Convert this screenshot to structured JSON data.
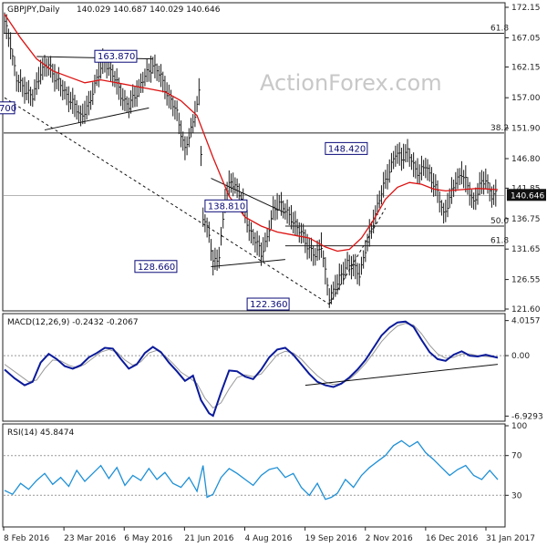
{
  "chart_data": [
    {
      "type": "candlestick",
      "title": "GBPJPY,Daily",
      "ohlc_header": "140.029 140.687 140.029 140.646",
      "watermark": "ActionForex.com",
      "last_price": "140.646",
      "ylim": [
        121.6,
        172.15
      ],
      "y_ticks": [
        "172.15",
        "167.05",
        "162.15",
        "157.00",
        "151.90",
        "146.80",
        "141.85",
        "136.75",
        "131.65",
        "126.55",
        "121.60"
      ],
      "x_dates": [
        "8 Feb 2016",
        "23 Mar 2016",
        "6 May 2016",
        "21 Jun 2016",
        "4 Aug 2016",
        "19 Sep 2016",
        "2 Nov 2016",
        "16 Dec 2016",
        "31 Jan 2017"
      ],
      "annotations": [
        {
          "text": "163.870",
          "value": 163.87
        },
        {
          "text": "148.420",
          "value": 148.42
        },
        {
          "text": "138.810",
          "value": 138.81
        },
        {
          "text": "128.660",
          "value": 128.66
        },
        {
          "text": "122.360",
          "value": 122.36
        },
        {
          "text": "700"
        }
      ],
      "fib_levels": [
        {
          "label": "61.8",
          "value": 167.8
        },
        {
          "label": "38.2",
          "value": 151.1
        },
        {
          "label": "50.0",
          "value": 135.5
        },
        {
          "label": "61.8",
          "value": 132.2
        }
      ],
      "close_series": [
        [
          0,
          169.5
        ],
        [
          3,
          166
        ],
        [
          6,
          160
        ],
        [
          10,
          158.5
        ],
        [
          14,
          157
        ],
        [
          18,
          161.5
        ],
        [
          22,
          162.5
        ],
        [
          26,
          160
        ],
        [
          30,
          158
        ],
        [
          34,
          156
        ],
        [
          38,
          154
        ],
        [
          42,
          155.5
        ],
        [
          46,
          160.5
        ],
        [
          50,
          163
        ],
        [
          54,
          161
        ],
        [
          58,
          157.5
        ],
        [
          62,
          155.5
        ],
        [
          66,
          158
        ],
        [
          70,
          160.5
        ],
        [
          74,
          162.5
        ],
        [
          78,
          160.5
        ],
        [
          82,
          157
        ],
        [
          86,
          154.5
        ],
        [
          90,
          148
        ],
        [
          94,
          153
        ],
        [
          97,
          157.5
        ],
        [
          99,
          137
        ],
        [
          102,
          134.5
        ],
        [
          104,
          129
        ],
        [
          107,
          130.5
        ],
        [
          110,
          140
        ],
        [
          113,
          143
        ],
        [
          116,
          142
        ],
        [
          119,
          139
        ],
        [
          122,
          135
        ],
        [
          125,
          133
        ],
        [
          128,
          131
        ],
        [
          131,
          133.5
        ],
        [
          134,
          138
        ],
        [
          137,
          139.5
        ],
        [
          140,
          138
        ],
        [
          143,
          137
        ],
        [
          146,
          135
        ],
        [
          149,
          134
        ],
        [
          152,
          131.5
        ],
        [
          155,
          130.5
        ],
        [
          158,
          132.5
        ],
        [
          160,
          127.5
        ],
        [
          162,
          123.5
        ],
        [
          165,
          125.5
        ],
        [
          168,
          127
        ],
        [
          171,
          129.5
        ],
        [
          174,
          128.5
        ],
        [
          177,
          127.5
        ],
        [
          180,
          131.5
        ],
        [
          183,
          135
        ],
        [
          186,
          139
        ],
        [
          189,
          142
        ],
        [
          192,
          145
        ],
        [
          195,
          147.5
        ],
        [
          198,
          147
        ],
        [
          201,
          148
        ],
        [
          204,
          145.5
        ],
        [
          207,
          144.5
        ],
        [
          210,
          145.5
        ],
        [
          213,
          143.5
        ],
        [
          216,
          141
        ],
        [
          219,
          137.5
        ],
        [
          222,
          140
        ],
        [
          225,
          143
        ],
        [
          228,
          144.5
        ],
        [
          231,
          142
        ],
        [
          234,
          139.5
        ],
        [
          237,
          142
        ],
        [
          240,
          143.5
        ],
        [
          243,
          140.5
        ],
        [
          246,
          140.6
        ]
      ],
      "ma_series": [
        [
          0,
          171
        ],
        [
          8,
          167
        ],
        [
          16,
          163.5
        ],
        [
          24,
          161.5
        ],
        [
          32,
          160.5
        ],
        [
          40,
          159.5
        ],
        [
          48,
          160
        ],
        [
          56,
          159.5
        ],
        [
          64,
          159
        ],
        [
          72,
          158.5
        ],
        [
          80,
          158
        ],
        [
          88,
          156.5
        ],
        [
          96,
          154
        ],
        [
          104,
          147
        ],
        [
          112,
          140.5
        ],
        [
          120,
          137
        ],
        [
          128,
          135.5
        ],
        [
          136,
          134.5
        ],
        [
          144,
          134
        ],
        [
          152,
          133.5
        ],
        [
          160,
          132
        ],
        [
          166,
          131.3
        ],
        [
          172,
          131.6
        ],
        [
          178,
          133.5
        ],
        [
          184,
          136.5
        ],
        [
          190,
          140
        ],
        [
          196,
          142
        ],
        [
          202,
          142.8
        ],
        [
          208,
          142.5
        ],
        [
          214,
          141.7
        ],
        [
          220,
          141.4
        ],
        [
          228,
          141.6
        ],
        [
          236,
          141.8
        ],
        [
          246,
          141.6
        ]
      ],
      "trendlines": [
        {
          "name": "falling dashed line",
          "points": [
            [
              0,
              157
            ],
            [
              162,
              122.4
            ]
          ]
        },
        {
          "name": "rising dashed line",
          "points": [
            [
              162,
              122.4
            ],
            [
              190,
              138.5
            ]
          ]
        },
        {
          "name": "upper line",
          "points": [
            [
              16,
              163.9
            ],
            [
              74,
              163.5
            ]
          ]
        },
        {
          "name": "lower line",
          "points": [
            [
              20,
              151.6
            ],
            [
              72,
              155.3
            ]
          ]
        },
        {
          "name": "triangle top",
          "points": [
            [
              103,
              143.5
            ],
            [
              140,
              137.7
            ]
          ]
        },
        {
          "name": "triangle base",
          "points": [
            [
              103,
              128.7
            ],
            [
              140,
              129.9
            ]
          ]
        }
      ]
    },
    {
      "type": "line",
      "title": "MACD(12,26,9) -0.2432 -0.2067",
      "ylim": [
        -7.2,
        4.5
      ],
      "y_ticks": [
        "4.0157",
        "0.00",
        "-6.9293"
      ],
      "macd_series": [
        [
          0,
          -1.6
        ],
        [
          5,
          -2.6
        ],
        [
          10,
          -3.4
        ],
        [
          14,
          -3.0
        ],
        [
          18,
          -0.8
        ],
        [
          22,
          0.2
        ],
        [
          26,
          -0.4
        ],
        [
          30,
          -1.2
        ],
        [
          34,
          -1.5
        ],
        [
          38,
          -1.1
        ],
        [
          42,
          -0.2
        ],
        [
          46,
          0.3
        ],
        [
          50,
          0.9
        ],
        [
          54,
          0.8
        ],
        [
          58,
          -0.4
        ],
        [
          62,
          -1.5
        ],
        [
          66,
          -1.0
        ],
        [
          70,
          0.3
        ],
        [
          74,
          1.0
        ],
        [
          78,
          0.4
        ],
        [
          82,
          -0.8
        ],
        [
          86,
          -1.8
        ],
        [
          90,
          -2.9
        ],
        [
          94,
          -2.3
        ],
        [
          98,
          -5.1
        ],
        [
          102,
          -6.6
        ],
        [
          104,
          -6.9
        ],
        [
          108,
          -4.2
        ],
        [
          112,
          -1.7
        ],
        [
          116,
          -1.8
        ],
        [
          120,
          -2.4
        ],
        [
          124,
          -2.7
        ],
        [
          128,
          -1.6
        ],
        [
          132,
          -0.2
        ],
        [
          136,
          0.7
        ],
        [
          140,
          0.9
        ],
        [
          144,
          0.1
        ],
        [
          148,
          -1.0
        ],
        [
          152,
          -2.1
        ],
        [
          156,
          -3.0
        ],
        [
          160,
          -3.4
        ],
        [
          164,
          -3.6
        ],
        [
          168,
          -3.2
        ],
        [
          172,
          -2.5
        ],
        [
          176,
          -1.6
        ],
        [
          180,
          -0.5
        ],
        [
          184,
          0.9
        ],
        [
          188,
          2.3
        ],
        [
          192,
          3.2
        ],
        [
          196,
          3.8
        ],
        [
          200,
          3.9
        ],
        [
          204,
          3.3
        ],
        [
          208,
          1.8
        ],
        [
          212,
          0.4
        ],
        [
          216,
          -0.4
        ],
        [
          220,
          -0.6
        ],
        [
          224,
          0.1
        ],
        [
          228,
          0.5
        ],
        [
          232,
          0.0
        ],
        [
          236,
          -0.1
        ],
        [
          240,
          0.1
        ],
        [
          246,
          -0.24
        ]
      ],
      "signal_series": [
        [
          0,
          -1.0
        ],
        [
          6,
          -2.0
        ],
        [
          12,
          -3.0
        ],
        [
          16,
          -2.8
        ],
        [
          20,
          -1.5
        ],
        [
          24,
          -0.5
        ],
        [
          28,
          -0.6
        ],
        [
          32,
          -1.1
        ],
        [
          36,
          -1.4
        ],
        [
          40,
          -1.0
        ],
        [
          44,
          -0.3
        ],
        [
          48,
          0.4
        ],
        [
          52,
          0.7
        ],
        [
          56,
          0.4
        ],
        [
          60,
          -0.5
        ],
        [
          64,
          -1.1
        ],
        [
          68,
          -0.7
        ],
        [
          72,
          0.3
        ],
        [
          76,
          0.6
        ],
        [
          80,
          0.0
        ],
        [
          84,
          -0.9
        ],
        [
          88,
          -1.9
        ],
        [
          92,
          -2.5
        ],
        [
          96,
          -3.2
        ],
        [
          100,
          -4.9
        ],
        [
          104,
          -6.0
        ],
        [
          108,
          -5.4
        ],
        [
          112,
          -3.8
        ],
        [
          116,
          -2.5
        ],
        [
          120,
          -2.2
        ],
        [
          124,
          -2.4
        ],
        [
          128,
          -2.1
        ],
        [
          132,
          -1.0
        ],
        [
          136,
          0.1
        ],
        [
          140,
          0.5
        ],
        [
          144,
          0.3
        ],
        [
          148,
          -0.4
        ],
        [
          152,
          -1.4
        ],
        [
          156,
          -2.3
        ],
        [
          160,
          -3.0
        ],
        [
          164,
          -3.3
        ],
        [
          168,
          -3.2
        ],
        [
          172,
          -2.7
        ],
        [
          176,
          -1.9
        ],
        [
          180,
          -0.9
        ],
        [
          184,
          0.3
        ],
        [
          188,
          1.6
        ],
        [
          192,
          2.6
        ],
        [
          196,
          3.4
        ],
        [
          200,
          3.7
        ],
        [
          204,
          3.5
        ],
        [
          208,
          2.5
        ],
        [
          212,
          1.2
        ],
        [
          216,
          0.2
        ],
        [
          220,
          -0.3
        ],
        [
          224,
          -0.2
        ],
        [
          228,
          0.2
        ],
        [
          232,
          0.2
        ],
        [
          236,
          0.0
        ],
        [
          240,
          -0.1
        ],
        [
          246,
          -0.21
        ]
      ],
      "trendline": [
        [
          150,
          -3.4
        ],
        [
          246,
          -1.0
        ]
      ]
    },
    {
      "type": "line",
      "title": "RSI(14) 45.8474",
      "ylim": [
        0,
        100
      ],
      "y_ticks": [
        "100",
        "70",
        "30"
      ],
      "levels": [
        70,
        30
      ],
      "rsi_series": [
        [
          0,
          35
        ],
        [
          4,
          31
        ],
        [
          8,
          42
        ],
        [
          12,
          36
        ],
        [
          16,
          45
        ],
        [
          20,
          52
        ],
        [
          24,
          41
        ],
        [
          28,
          48
        ],
        [
          32,
          39
        ],
        [
          36,
          55
        ],
        [
          40,
          44
        ],
        [
          44,
          52
        ],
        [
          48,
          60
        ],
        [
          52,
          47
        ],
        [
          56,
          58
        ],
        [
          60,
          40
        ],
        [
          64,
          50
        ],
        [
          68,
          45
        ],
        [
          72,
          57
        ],
        [
          76,
          46
        ],
        [
          80,
          53
        ],
        [
          84,
          42
        ],
        [
          88,
          38
        ],
        [
          92,
          48
        ],
        [
          96,
          34
        ],
        [
          99,
          60
        ],
        [
          101,
          28
        ],
        [
          104,
          31
        ],
        [
          108,
          48
        ],
        [
          112,
          57
        ],
        [
          116,
          52
        ],
        [
          120,
          46
        ],
        [
          124,
          40
        ],
        [
          128,
          50
        ],
        [
          132,
          56
        ],
        [
          136,
          58
        ],
        [
          140,
          48
        ],
        [
          144,
          52
        ],
        [
          148,
          38
        ],
        [
          152,
          30
        ],
        [
          156,
          42
        ],
        [
          160,
          26
        ],
        [
          163,
          28
        ],
        [
          166,
          32
        ],
        [
          170,
          46
        ],
        [
          174,
          38
        ],
        [
          178,
          50
        ],
        [
          182,
          58
        ],
        [
          186,
          64
        ],
        [
          190,
          70
        ],
        [
          194,
          80
        ],
        [
          198,
          85
        ],
        [
          202,
          79
        ],
        [
          206,
          84
        ],
        [
          210,
          73
        ],
        [
          214,
          66
        ],
        [
          218,
          58
        ],
        [
          222,
          50
        ],
        [
          226,
          56
        ],
        [
          230,
          60
        ],
        [
          234,
          50
        ],
        [
          238,
          46
        ],
        [
          242,
          55
        ],
        [
          246,
          45.8
        ]
      ]
    }
  ]
}
